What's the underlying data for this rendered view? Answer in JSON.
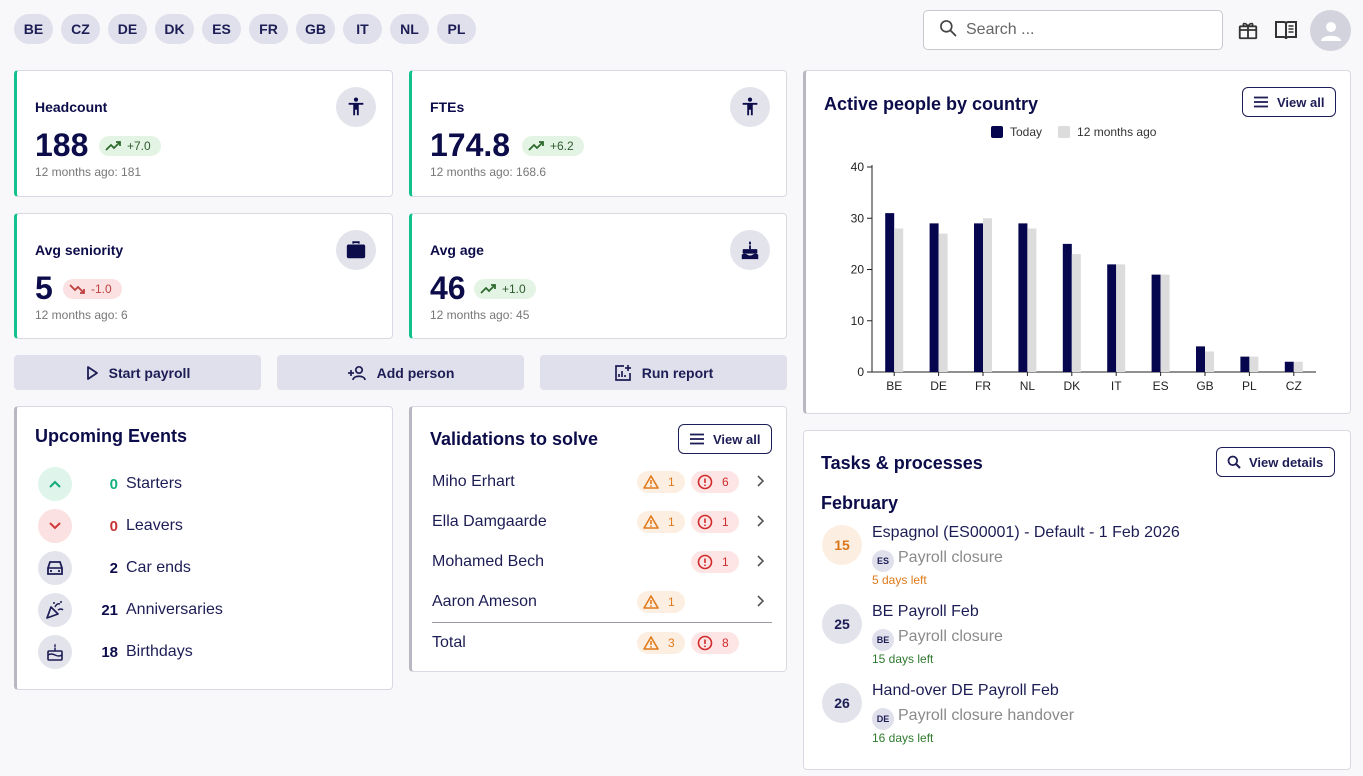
{
  "countries": [
    "BE",
    "CZ",
    "DE",
    "DK",
    "ES",
    "FR",
    "GB",
    "IT",
    "NL",
    "PL"
  ],
  "search": {
    "placeholder": "Search ..."
  },
  "icons": {
    "search": "search-icon",
    "gift": "gift-icon",
    "book": "book-icon",
    "account": "account-icon"
  },
  "kpis": {
    "headcount": {
      "title": "Headcount",
      "value": "188",
      "delta": "+7.0",
      "sub": "12 months ago: 181"
    },
    "ftes": {
      "title": "FTEs",
      "value": "174.8",
      "delta": "+6.2",
      "sub": "12 months ago: 168.6"
    },
    "seniority": {
      "title": "Avg seniority",
      "value": "5",
      "delta": "-1.0",
      "sub": "12 months ago: 6"
    },
    "age": {
      "title": "Avg age",
      "value": "46",
      "delta": "+1.0",
      "sub": "12 months ago: 45"
    }
  },
  "actions": {
    "start_payroll": "Start payroll",
    "add_person": "Add person",
    "run_report": "Run report"
  },
  "events": {
    "title": "Upcoming Events",
    "items": [
      {
        "count": "0",
        "label": "Starters"
      },
      {
        "count": "0",
        "label": "Leavers"
      },
      {
        "count": "2",
        "label": "Car ends"
      },
      {
        "count": "21",
        "label": "Anniversaries"
      },
      {
        "count": "18",
        "label": "Birthdays"
      }
    ]
  },
  "validations": {
    "title": "Validations to solve",
    "view_all": "View all",
    "rows": [
      {
        "name": "Miho Erhart",
        "warn": "1",
        "err": "6"
      },
      {
        "name": "Ella Damgaarde",
        "warn": "1",
        "err": "1"
      },
      {
        "name": "Mohamed Bech",
        "warn": "",
        "err": "1"
      },
      {
        "name": "Aaron Ameson",
        "warn": "1",
        "err": ""
      }
    ],
    "total": {
      "label": "Total",
      "warn": "3",
      "err": "8"
    }
  },
  "chart": {
    "view_all": "View all"
  },
  "chart_data": {
    "type": "bar",
    "title": "Active people by country",
    "categories": [
      "BE",
      "DE",
      "FR",
      "NL",
      "DK",
      "IT",
      "ES",
      "GB",
      "PL",
      "CZ"
    ],
    "series": [
      {
        "name": "Today",
        "color": "#06064f",
        "values": [
          31,
          29,
          29,
          29,
          25,
          21,
          19,
          5,
          3,
          2
        ]
      },
      {
        "name": "12 months ago",
        "color": "#dcdcdc",
        "values": [
          28,
          27,
          30,
          28,
          23,
          21,
          19,
          4,
          3,
          2
        ]
      }
    ],
    "yticks": [
      0,
      10,
      20,
      30,
      40
    ],
    "ylim": [
      0,
      40
    ],
    "legend": "top-center"
  },
  "tasks": {
    "title": "Tasks & processes",
    "view_details": "View details",
    "month": "February",
    "items": [
      {
        "day": "15",
        "title": "Espagnol (ES00001) - Default - 1 Feb 2026",
        "cc": "ES",
        "process": "Payroll closure",
        "left": "5 days left"
      },
      {
        "day": "25",
        "title": "BE Payroll Feb",
        "cc": "BE",
        "process": "Payroll closure",
        "left": "15 days left"
      },
      {
        "day": "26",
        "title": "Hand-over DE Payroll Feb",
        "cc": "DE",
        "process": "Payroll closure handover",
        "left": "16 days left"
      }
    ]
  }
}
